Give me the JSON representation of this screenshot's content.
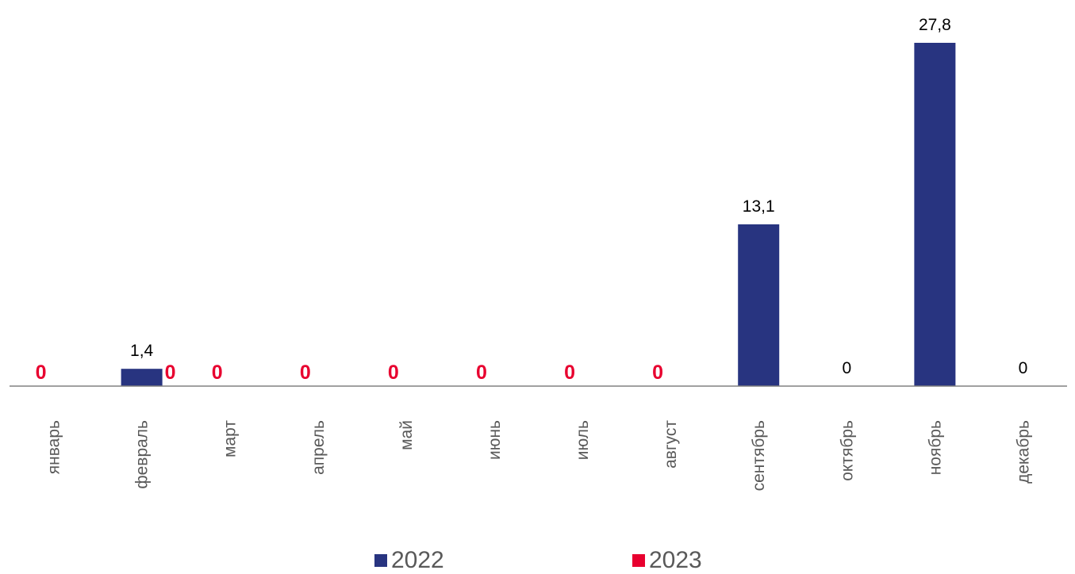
{
  "chart_data": {
    "type": "bar",
    "categories": [
      "январь",
      "февраль",
      "март",
      "апрель",
      "май",
      "июнь",
      "июль",
      "август",
      "сентябрь",
      "октябрь",
      "ноябрь",
      "декабрь"
    ],
    "series": [
      {
        "name": "2022",
        "color": "#283480",
        "values": [
          null,
          1.4,
          null,
          null,
          null,
          null,
          null,
          null,
          13.1,
          0,
          27.8,
          0
        ],
        "labels": [
          "",
          "1,4",
          "",
          "",
          "",
          "",
          "",
          "",
          "13,1",
          "0",
          "27,8",
          "0"
        ]
      },
      {
        "name": "2023",
        "color": "#e8002f",
        "values": [
          0,
          0,
          0,
          0,
          0,
          0,
          0,
          0,
          null,
          null,
          null,
          null
        ],
        "labels": [
          "0",
          "0",
          "0",
          "0",
          "0",
          "0",
          "0",
          "0",
          "",
          "",
          "",
          ""
        ]
      }
    ],
    "ylim": [
      0,
      27.8
    ],
    "grid": false,
    "legend_position": "bottom",
    "colors": {
      "axis": "#808080",
      "tick_label": "#595959",
      "data_label_2022": "#000000",
      "data_label_2023": "#e8002f"
    }
  }
}
